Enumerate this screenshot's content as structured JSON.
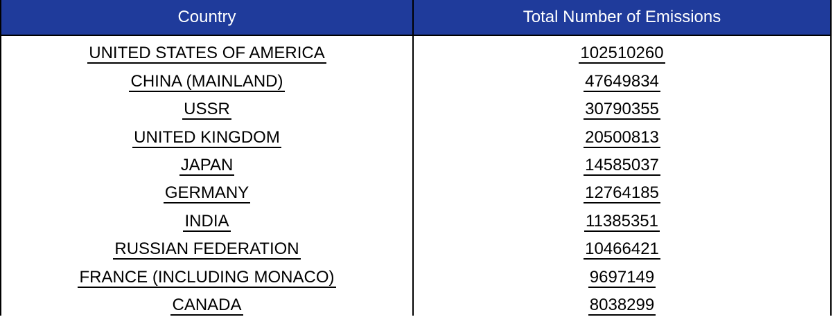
{
  "table": {
    "headers": {
      "country": "Country",
      "emissions": "Total Number of Emissions"
    },
    "rows": [
      {
        "country": "UNITED STATES OF AMERICA",
        "emissions": "102510260"
      },
      {
        "country": "CHINA (MAINLAND)",
        "emissions": "47649834"
      },
      {
        "country": "USSR",
        "emissions": "30790355"
      },
      {
        "country": "UNITED KINGDOM",
        "emissions": "20500813"
      },
      {
        "country": "JAPAN",
        "emissions": "14585037"
      },
      {
        "country": "GERMANY",
        "emissions": "12764185"
      },
      {
        "country": "INDIA",
        "emissions": "11385351"
      },
      {
        "country": "RUSSIAN FEDERATION",
        "emissions": "10466421"
      },
      {
        "country": "FRANCE (INCLUDING MONACO)",
        "emissions": "9697149"
      },
      {
        "country": "CANADA",
        "emissions": "8038299"
      }
    ]
  },
  "colors": {
    "header_background": "#1f3b9b",
    "header_text": "#ffffff",
    "grid_line": "#000000"
  }
}
